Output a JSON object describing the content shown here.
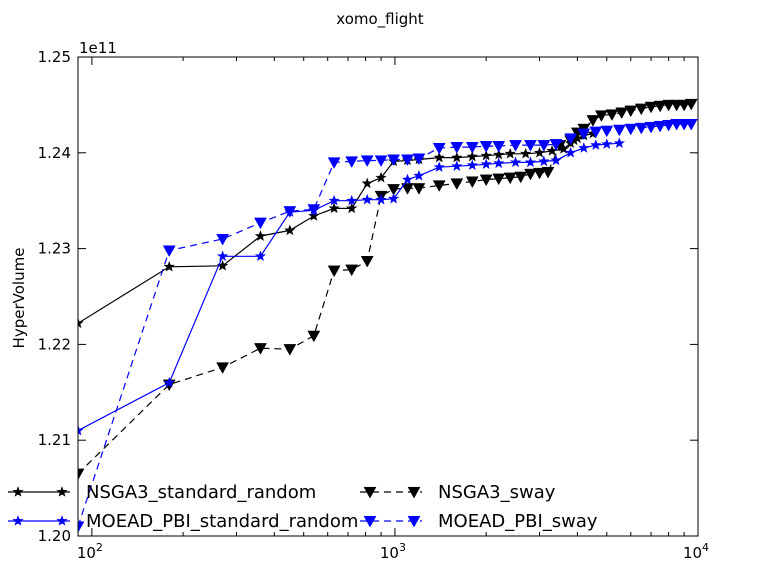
{
  "chart_data": {
    "type": "line",
    "title": "xomo_flight",
    "xlabel": "",
    "ylabel": "HyperVolume",
    "xscale": "log",
    "xlim": [
      90,
      10000
    ],
    "ylim": [
      1.2,
      1.25
    ],
    "y_multiplier_label": "1e11",
    "x_tick_values": [
      100,
      1000,
      10000
    ],
    "x_tick_labels": [
      {
        "base": "10",
        "exp": "2"
      },
      {
        "base": "10",
        "exp": "3"
      },
      {
        "base": "10",
        "exp": "4"
      }
    ],
    "y_ticks": [
      1.2,
      1.21,
      1.22,
      1.23,
      1.24,
      1.25
    ],
    "y_tick_labels": [
      "1.20",
      "1.21",
      "1.22",
      "1.23",
      "1.24",
      "1.25"
    ],
    "grid": false,
    "legend_position": "lower-center",
    "legend_columns": 2,
    "series": [
      {
        "name": "NSGA3_standard_random",
        "color": "#000000",
        "marker": "star",
        "line": "solid",
        "x": [
          90,
          180,
          270,
          360,
          450,
          540,
          630,
          720,
          810,
          900,
          990,
          1100,
          1200,
          1400,
          1600,
          1800,
          2000,
          2200,
          2400,
          2700,
          3000,
          3300,
          3600,
          3800,
          3900,
          4000,
          4200,
          4500
        ],
        "y": [
          1.2222,
          1.2281,
          1.2282,
          1.2313,
          1.2319,
          1.2334,
          1.2342,
          1.2342,
          1.2368,
          1.2374,
          1.2391,
          1.2392,
          1.2393,
          1.2395,
          1.2395,
          1.2396,
          1.2397,
          1.2398,
          1.2399,
          1.2399,
          1.24,
          1.2402,
          1.2404,
          1.241,
          1.2413,
          1.2415,
          1.2418,
          1.242
        ]
      },
      {
        "name": "NSGA3_sway",
        "color": "#000000",
        "marker": "triangle-down",
        "line": "dashed",
        "x": [
          90,
          180,
          270,
          360,
          450,
          540,
          630,
          720,
          810,
          900,
          990,
          1100,
          1200,
          1400,
          1600,
          1800,
          2000,
          2200,
          2400,
          2600,
          2800,
          3000,
          3200,
          3500,
          3800,
          4000,
          4200,
          4500,
          4800,
          5200,
          5600,
          6000,
          6500,
          7000,
          7500,
          8000,
          8500,
          9000,
          9500
        ],
        "y": [
          1.2065,
          1.2158,
          1.2176,
          1.2196,
          1.2195,
          1.2209,
          1.2277,
          1.2278,
          1.2287,
          1.2355,
          1.2362,
          1.2363,
          1.2363,
          1.2366,
          1.2368,
          1.237,
          1.2372,
          1.2373,
          1.2374,
          1.2375,
          1.2378,
          1.2379,
          1.238,
          1.2408,
          1.2413,
          1.2421,
          1.2425,
          1.2434,
          1.2439,
          1.244,
          1.2442,
          1.2444,
          1.2446,
          1.2448,
          1.2449,
          1.245,
          1.245,
          1.245,
          1.2451
        ]
      },
      {
        "name": "MOEAD_PBI_standard_random",
        "color": "#0000ff",
        "marker": "star",
        "line": "solid",
        "x": [
          90,
          180,
          270,
          360,
          450,
          540,
          630,
          720,
          810,
          900,
          990,
          1100,
          1200,
          1400,
          1600,
          1800,
          2000,
          2200,
          2500,
          2800,
          3100,
          3400,
          3800,
          4200,
          4600,
          5000,
          5500
        ],
        "y": [
          1.211,
          1.216,
          1.2292,
          1.2292,
          1.2338,
          1.234,
          1.235,
          1.235,
          1.2351,
          1.2351,
          1.2352,
          1.2372,
          1.2376,
          1.2385,
          1.2386,
          1.2387,
          1.2388,
          1.2389,
          1.239,
          1.239,
          1.2391,
          1.2392,
          1.24,
          1.2405,
          1.2408,
          1.2409,
          1.241
        ]
      },
      {
        "name": "MOEAD_PBI_sway",
        "color": "#0000ff",
        "marker": "triangle-down",
        "line": "dashed",
        "x": [
          90,
          180,
          270,
          360,
          450,
          540,
          630,
          720,
          810,
          900,
          990,
          1100,
          1200,
          1400,
          1600,
          1800,
          2000,
          2200,
          2500,
          2800,
          3100,
          3400,
          3800,
          4200,
          4600,
          5000,
          5500,
          6000,
          6500,
          7000,
          7500,
          8000,
          8500,
          9000,
          9500
        ],
        "y": [
          1.201,
          1.2298,
          1.231,
          1.2327,
          1.2339,
          1.2341,
          1.239,
          1.2391,
          1.2392,
          1.2392,
          1.2393,
          1.2393,
          1.2394,
          1.2405,
          1.2406,
          1.2406,
          1.2407,
          1.2407,
          1.2408,
          1.2408,
          1.2408,
          1.2409,
          1.2415,
          1.242,
          1.2422,
          1.2423,
          1.2424,
          1.2425,
          1.2426,
          1.2427,
          1.2428,
          1.2429,
          1.243,
          1.243,
          1.243
        ]
      }
    ]
  }
}
